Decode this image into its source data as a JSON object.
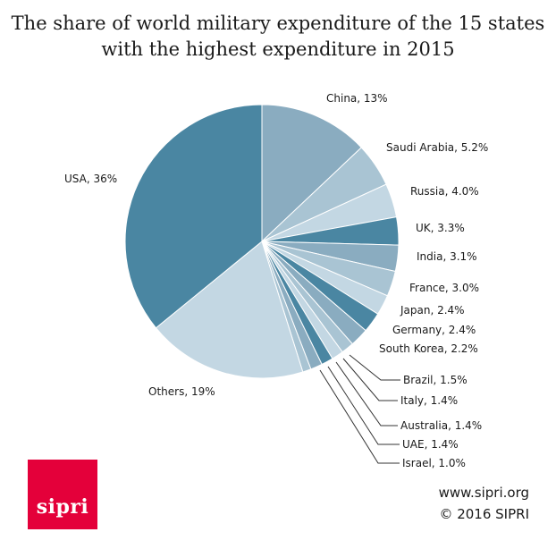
{
  "title_line1": "The share of world military expenditure of the 15 states",
  "title_line2": "with the highest expenditure in 2015",
  "chart_data": {
    "type": "pie",
    "title": "The share of world military expenditure of the 15 states with the highest expenditure in 2015",
    "start_angle_deg": 0,
    "direction": "clockwise",
    "slices": [
      {
        "label": "China, 13%",
        "name": "China",
        "value": 13,
        "color": "#8aacc0"
      },
      {
        "label": "Saudi Arabia, 5.2%",
        "name": "Saudi Arabia",
        "value": 5.2,
        "color": "#a9c4d3"
      },
      {
        "label": "Russia, 4.0%",
        "name": "Russia",
        "value": 4.0,
        "color": "#c3d7e3"
      },
      {
        "label": "UK, 3.3%",
        "name": "UK",
        "value": 3.3,
        "color": "#4a86a2"
      },
      {
        "label": "India, 3.1%",
        "name": "India",
        "value": 3.1,
        "color": "#8aacc0"
      },
      {
        "label": "France, 3.0%",
        "name": "France",
        "value": 3.0,
        "color": "#a9c4d3"
      },
      {
        "label": "Japan, 2.4%",
        "name": "Japan",
        "value": 2.4,
        "color": "#c3d7e3"
      },
      {
        "label": "Germany, 2.4%",
        "name": "Germany",
        "value": 2.4,
        "color": "#4a86a2"
      },
      {
        "label": "South Korea, 2.2%",
        "name": "South Korea",
        "value": 2.2,
        "color": "#8aacc0"
      },
      {
        "label": "Brazil, 1.5%",
        "name": "Brazil",
        "value": 1.5,
        "color": "#a9c4d3"
      },
      {
        "label": "Italy, 1.4%",
        "name": "Italy",
        "value": 1.4,
        "color": "#c3d7e3"
      },
      {
        "label": "Australia, 1.4%",
        "name": "Australia",
        "value": 1.4,
        "color": "#4a86a2"
      },
      {
        "label": "UAE, 1.4%",
        "name": "UAE",
        "value": 1.4,
        "color": "#8aacc0"
      },
      {
        "label": "Israel, 1.0%",
        "name": "Israel",
        "value": 1.0,
        "color": "#a9c4d3"
      },
      {
        "label": "Others, 19%",
        "name": "Others",
        "value": 19,
        "color": "#c3d7e3"
      },
      {
        "label": "USA, 36%",
        "name": "USA",
        "value": 36,
        "color": "#4a86a2"
      }
    ]
  },
  "logo_text": "sipri",
  "website": "www.sipri.org",
  "copyright": "© 2016 SIPRI"
}
